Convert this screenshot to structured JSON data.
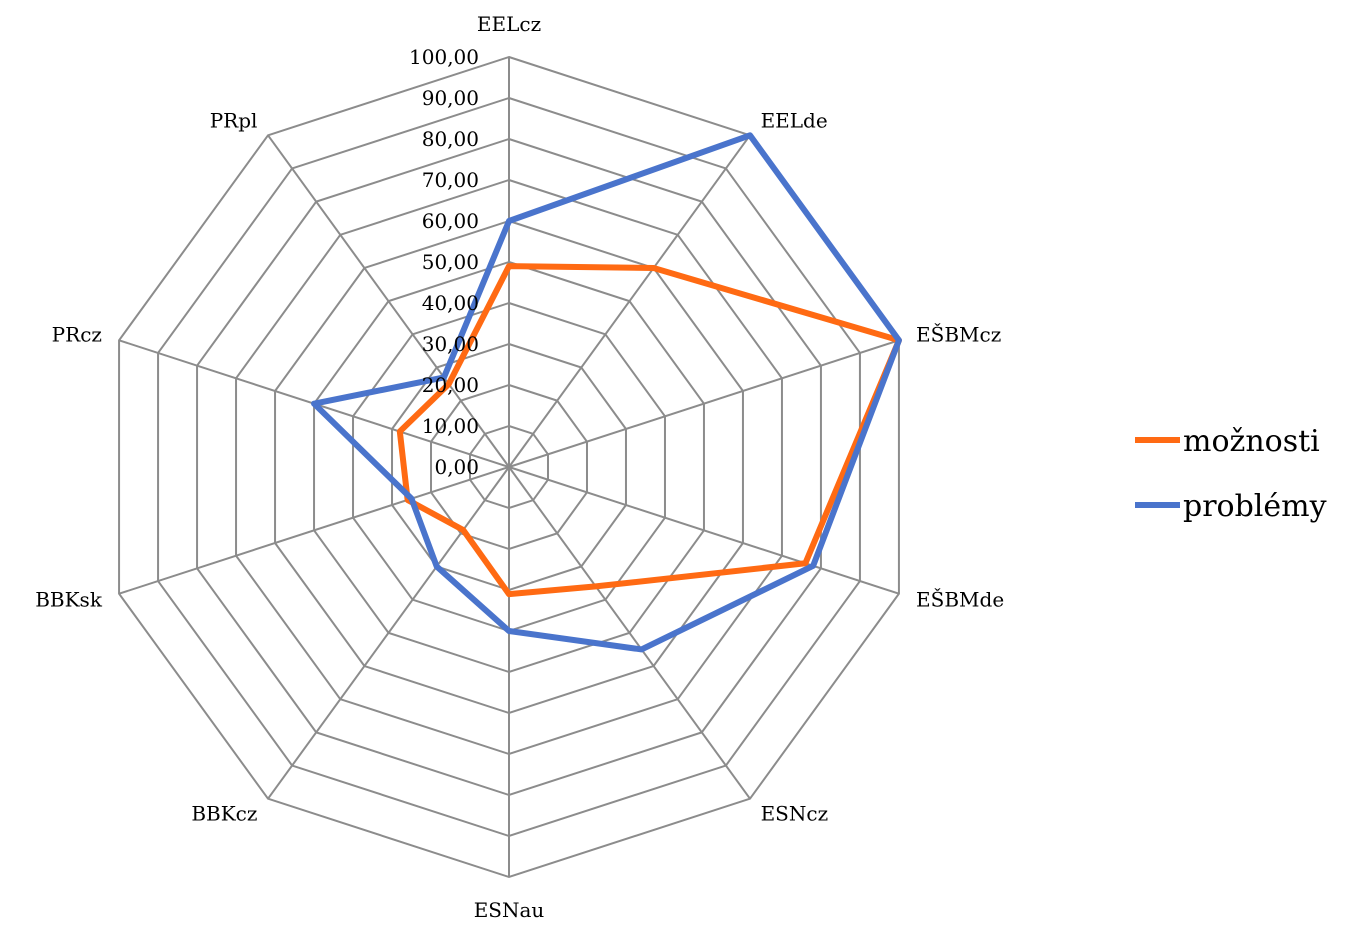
{
  "chart_data": {
    "type": "radar",
    "categories": [
      "EELcz",
      "EELde",
      "EŠBMcz",
      "EŠBMde",
      "ESNcz",
      "ESNau",
      "BBKcz",
      "BBKsk",
      "PRcz",
      "PRpl"
    ],
    "series": [
      {
        "name": "možnosti",
        "color": "#ff6a13",
        "values": [
          49,
          60,
          100,
          76,
          36,
          31,
          19,
          26,
          28,
          25
        ]
      },
      {
        "name": "problémy",
        "color": "#4a74cc",
        "values": [
          60,
          100,
          100,
          78,
          55,
          40,
          30,
          25,
          50,
          27
        ]
      }
    ],
    "tick_labels": [
      "0,00",
      "10,00",
      "20,00",
      "30,00",
      "40,00",
      "50,00",
      "60,00",
      "70,00",
      "80,00",
      "90,00",
      "100,00"
    ],
    "rlim": [
      0,
      100
    ],
    "grid": true,
    "legend_position": "right"
  }
}
